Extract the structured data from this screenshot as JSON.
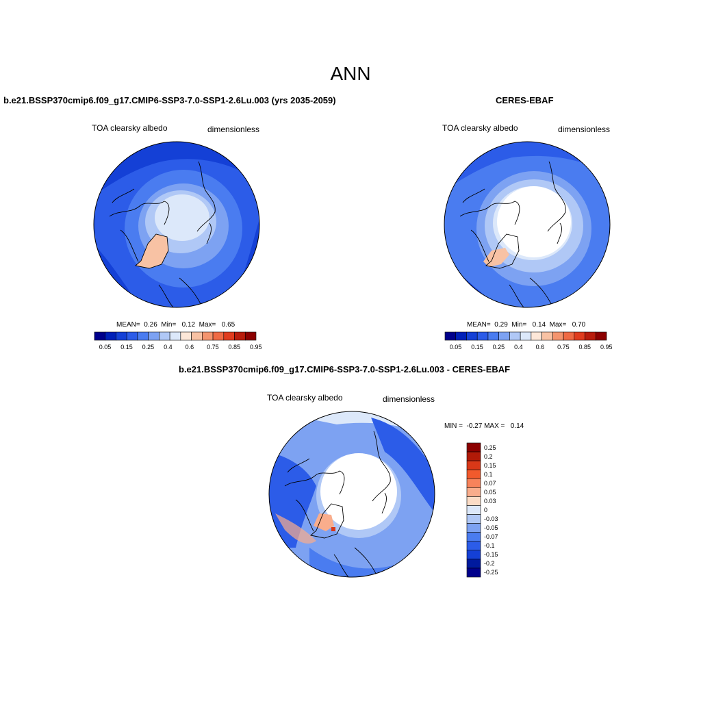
{
  "page": {
    "title": "ANN"
  },
  "colors": {
    "seq_scale": [
      "#00008b",
      "#0020b8",
      "#1440d6",
      "#2c5ce8",
      "#4a7cf0",
      "#7da2f2",
      "#b0c8f6",
      "#dce8fa",
      "#fde7d8",
      "#f8c2a4",
      "#f4946e",
      "#ef6a44",
      "#e03c1e",
      "#b81c0c",
      "#8b0000"
    ],
    "diff_scale": [
      "#8b0000",
      "#b11a08",
      "#d93818",
      "#f25a2c",
      "#f7835b",
      "#f9ad8c",
      "#fbdcc6",
      "#dce8fa",
      "#b0c8f6",
      "#7da2f2",
      "#4a7cf0",
      "#2c5ce8",
      "#1440d6",
      "#001a9e",
      "#00008b"
    ],
    "land_ice": "#ffffff",
    "coastline": "#000000"
  },
  "panels": [
    {
      "id": "model",
      "title": "b.e21.BSSP370cmip6.f09_g17.CMIP6-SSP3-7.0-SSP1-2.6Lu.003 (yrs 2035-2059)",
      "variable": "TOA clearsky albedo",
      "units": "dimensionless",
      "stats": {
        "mean_label": "MEAN=",
        "mean": "0.26",
        "min_label": "Min=",
        "min": "0.12",
        "max_label": "Max=",
        "max": "0.65"
      },
      "colorbar_ticks": [
        "0.05",
        "0.15",
        "0.25",
        "0.4",
        "0.6",
        "0.75",
        "0.85",
        "0.95"
      ]
    },
    {
      "id": "obs",
      "title": "CERES-EBAF",
      "variable": "TOA clearsky albedo",
      "units": "dimensionless",
      "stats": {
        "mean_label": "MEAN=",
        "mean": "0.29",
        "min_label": "Min=",
        "min": "0.14",
        "max_label": "Max=",
        "max": "0.70"
      },
      "colorbar_ticks": [
        "0.05",
        "0.15",
        "0.25",
        "0.4",
        "0.6",
        "0.75",
        "0.85",
        "0.95"
      ]
    },
    {
      "id": "diff",
      "title": "b.e21.BSSP370cmip6.f09_g17.CMIP6-SSP3-7.0-SSP1-2.6Lu.003 - CERES-EBAF",
      "variable": "TOA clearsky albedo",
      "units": "dimensionless",
      "stats": {
        "min_label": "MIN =",
        "min": "-0.27",
        "max_label": "MAX =",
        "max": "0.14"
      },
      "colorbar_ticks": [
        "0.25",
        "0.2",
        "0.15",
        "0.1",
        "0.07",
        "0.05",
        "0.03",
        "0",
        "-0.03",
        "-0.05",
        "-0.07",
        "-0.1",
        "-0.15",
        "-0.2",
        "-0.25"
      ]
    }
  ]
}
